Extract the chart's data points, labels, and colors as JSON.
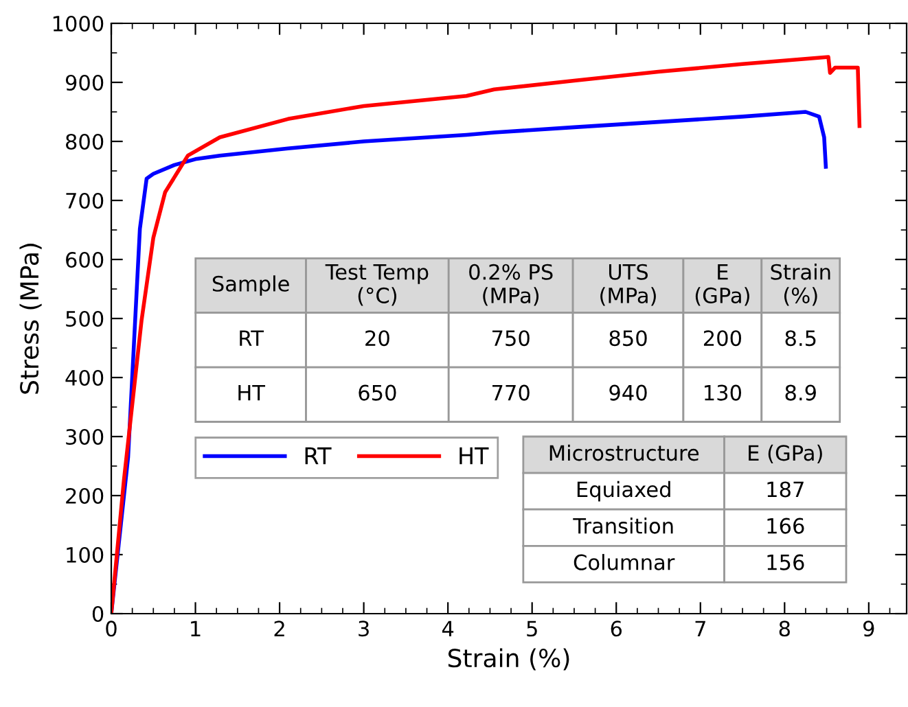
{
  "chart_data": {
    "type": "line",
    "xlabel": "Strain (%)",
    "ylabel": "Stress (MPa)",
    "xlim": [
      0,
      9.45
    ],
    "ylim": [
      0,
      1000
    ],
    "xticks": [
      0,
      1,
      2,
      3,
      4,
      5,
      6,
      7,
      8,
      9
    ],
    "yticks": [
      0,
      100,
      200,
      300,
      400,
      500,
      600,
      700,
      800,
      900,
      1000
    ],
    "grid": false,
    "legend": "center left",
    "line_style": "solid",
    "marker": "none",
    "series": [
      {
        "name": "RT",
        "color": "#0000ff",
        "x": [
          0,
          0.2,
          0.34,
          0.42,
          0.5,
          0.75,
          1.0,
          1.29,
          2.1,
          3.0,
          4.22,
          4.55,
          5.5,
          6.5,
          7.5,
          8.25,
          8.41,
          8.47,
          8.49
        ],
        "values": [
          0,
          265,
          652,
          737,
          745,
          760,
          770,
          776,
          788,
          800,
          811,
          815,
          824,
          833,
          842,
          850,
          842,
          807,
          757
        ]
      },
      {
        "name": "HT",
        "color": "#ff0000",
        "x": [
          0,
          0.15,
          0.36,
          0.5,
          0.64,
          0.91,
          1.29,
          2.1,
          3.0,
          4.22,
          4.55,
          5.5,
          6.5,
          7.5,
          8.52,
          8.54,
          8.6,
          8.87,
          8.89
        ],
        "values": [
          0,
          226,
          497,
          637,
          714,
          776,
          807,
          838,
          860,
          877,
          888,
          903,
          918,
          931,
          943,
          916,
          925,
          925,
          826
        ]
      }
    ],
    "annotations": [
      "Sample",
      "Test Temp\n(°C)",
      "0.2% PS\n(MPa)",
      "UTS\n(MPa)",
      "E\n(GPa)",
      "Strain\n(%)",
      "RT",
      "20",
      "750",
      "850",
      "200",
      "8.5",
      "HT",
      "650",
      "770",
      "940",
      "130",
      "8.9",
      "Microstructure",
      "E (GPa)",
      "Equiaxed",
      "187",
      "Transition",
      "166",
      "Columnar",
      "156"
    ]
  }
}
